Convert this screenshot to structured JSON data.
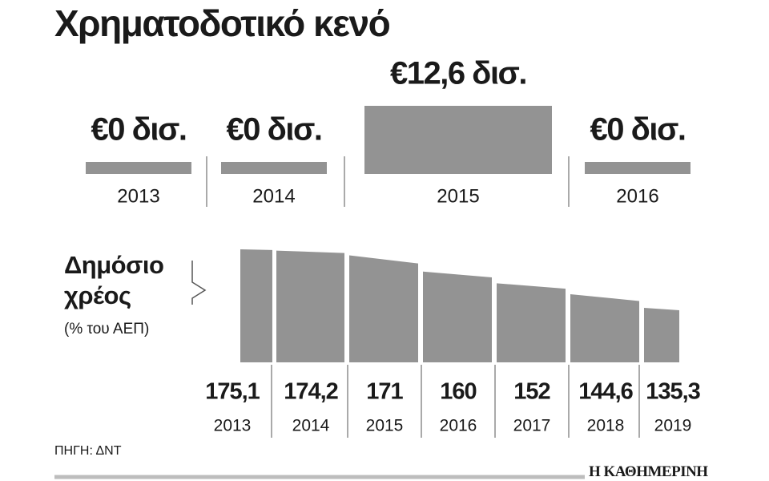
{
  "title": "Χρηματοδοτικό κενό",
  "chart_data": [
    {
      "type": "bar",
      "categories": [
        "2013",
        "2014",
        "2015",
        "2016"
      ],
      "values": [
        0,
        0,
        12.6,
        0
      ],
      "value_labels": [
        "€0 δισ.",
        "€0 δισ.",
        "€12,6 δισ.",
        "€0 δισ."
      ],
      "color": "#939393"
    },
    {
      "type": "area",
      "title": "Δημόσιο χρέος",
      "subtitle": "(% του ΑΕΠ)",
      "categories": [
        "2013",
        "2014",
        "2015",
        "2016",
        "2017",
        "2018",
        "2019"
      ],
      "values": [
        175.1,
        174.2,
        171,
        160,
        152,
        144.6,
        135.3
      ],
      "value_labels": [
        "175,1",
        "174,2",
        "171",
        "160",
        "152",
        "144,6",
        "135,3"
      ],
      "color": "#939393"
    }
  ],
  "source": "ΠΗΓΗ: ΔΝΤ",
  "brand": "Η ΚΑΘΗΜΕΡΙΝΗ"
}
